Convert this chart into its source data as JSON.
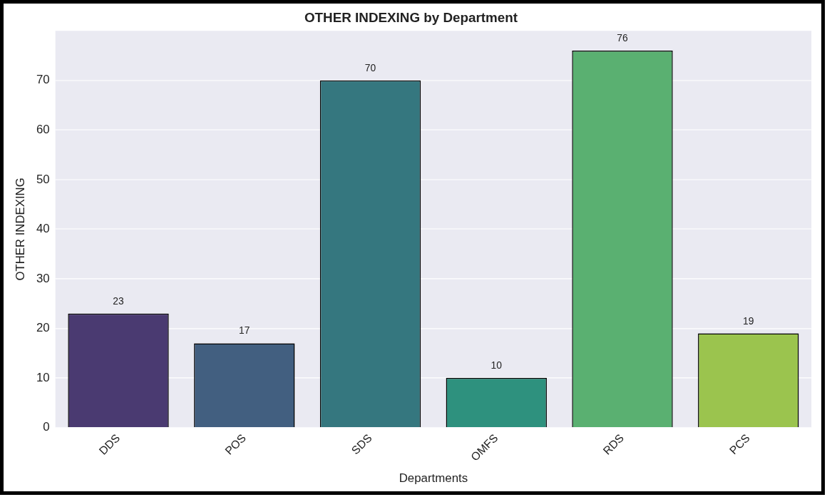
{
  "chart_data": {
    "type": "bar",
    "title": "OTHER INDEXING by Department",
    "xlabel": "Departments",
    "ylabel": "OTHER INDEXING",
    "categories": [
      "DDS",
      "POS",
      "SDS",
      "OMFS",
      "RDS",
      "PCS"
    ],
    "values": [
      23,
      17,
      70,
      10,
      76,
      19
    ],
    "colors": [
      "#4a3a71",
      "#425f80",
      "#35777f",
      "#2e917e",
      "#5ab071",
      "#9bc44e"
    ],
    "ylim": [
      0,
      80
    ],
    "yticks": [
      0,
      10,
      20,
      30,
      40,
      50,
      60,
      70
    ],
    "grid": "y",
    "data_labels": true,
    "legend": false
  }
}
